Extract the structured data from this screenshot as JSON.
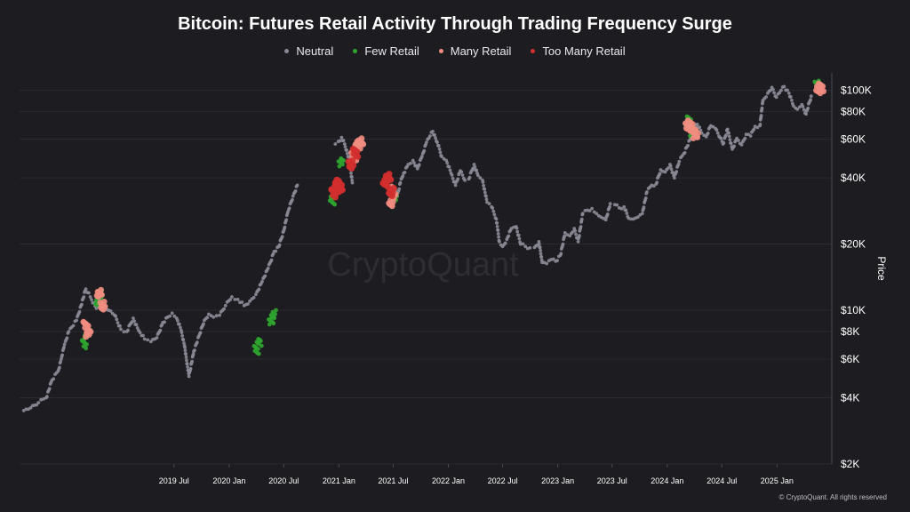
{
  "chart_data": {
    "type": "scatter",
    "title": "Bitcoin: Futures Retail Activity Through Trading Frequency Surge",
    "ylabel": "Price",
    "xlabel": "",
    "y_scale": "log",
    "ylim": [
      2000,
      120000
    ],
    "xlim": [
      "2018-02-01",
      "2025-06-15"
    ],
    "grid": true,
    "legend_position": "top-center",
    "watermark": "CryptoQuant",
    "y_ticks": [
      {
        "value": 2000,
        "label": "$2K"
      },
      {
        "value": 4000,
        "label": "$4K"
      },
      {
        "value": 6000,
        "label": "$6K"
      },
      {
        "value": 8000,
        "label": "$8K"
      },
      {
        "value": 10000,
        "label": "$10K"
      },
      {
        "value": 20000,
        "label": "$20K"
      },
      {
        "value": 40000,
        "label": "$40K"
      },
      {
        "value": 60000,
        "label": "$60K"
      },
      {
        "value": 80000,
        "label": "$80K"
      },
      {
        "value": 100000,
        "label": "$100K"
      }
    ],
    "x_ticks": [
      {
        "date": "2019-07-01",
        "label": "2019 Jul"
      },
      {
        "date": "2020-01-01",
        "label": "2020 Jan"
      },
      {
        "date": "2020-07-01",
        "label": "2020 Jul"
      },
      {
        "date": "2021-01-01",
        "label": "2021 Jan"
      },
      {
        "date": "2021-07-01",
        "label": "2021 Jul"
      },
      {
        "date": "2022-01-01",
        "label": "2022 Jan"
      },
      {
        "date": "2022-07-01",
        "label": "2022 Jul"
      },
      {
        "date": "2023-01-01",
        "label": "2023 Jan"
      },
      {
        "date": "2023-07-01",
        "label": "2023 Jul"
      },
      {
        "date": "2024-01-01",
        "label": "2024 Jan"
      },
      {
        "date": "2024-07-01",
        "label": "2024 Jul"
      },
      {
        "date": "2025-01-01",
        "label": "2025 Jan"
      }
    ],
    "series": [
      {
        "name": "Neutral",
        "color": "#8a8a96",
        "points": [
          [
            "2018-02-15",
            3500
          ],
          [
            "2018-03-10",
            3600
          ],
          [
            "2018-04-05",
            3800
          ],
          [
            "2018-05-01",
            4000
          ],
          [
            "2018-05-20",
            4800
          ],
          [
            "2018-06-10",
            5300
          ],
          [
            "2018-06-20",
            6000
          ],
          [
            "2018-07-01",
            7000
          ],
          [
            "2018-07-15",
            8000
          ],
          [
            "2018-08-10",
            9000
          ],
          [
            "2018-08-25",
            10500
          ],
          [
            "2018-09-10",
            12500
          ],
          [
            "2018-09-25",
            11500
          ],
          [
            "2018-10-15",
            10200
          ],
          [
            "2018-11-05",
            10800
          ],
          [
            "2018-11-25",
            10000
          ],
          [
            "2018-12-15",
            9500
          ],
          [
            "2019-01-05",
            8200
          ],
          [
            "2019-01-25",
            8000
          ],
          [
            "2019-02-15",
            9200
          ],
          [
            "2019-03-05",
            8100
          ],
          [
            "2019-03-25",
            7400
          ],
          [
            "2019-04-15",
            7200
          ],
          [
            "2019-05-05",
            7500
          ],
          [
            "2019-05-25",
            8800
          ],
          [
            "2019-06-10",
            9300
          ],
          [
            "2019-06-25",
            9700
          ],
          [
            "2019-07-10",
            9200
          ],
          [
            "2019-07-25",
            8100
          ],
          [
            "2019-08-05",
            6900
          ],
          [
            "2019-08-20",
            5000
          ],
          [
            "2019-09-05",
            6500
          ],
          [
            "2019-09-25",
            7800
          ],
          [
            "2019-10-10",
            9000
          ],
          [
            "2019-10-25",
            9600
          ],
          [
            "2019-11-10",
            9300
          ],
          [
            "2019-11-30",
            9500
          ],
          [
            "2019-12-20",
            10500
          ],
          [
            "2020-01-10",
            11500
          ],
          [
            "2020-01-30",
            11200
          ],
          [
            "2020-02-20",
            10500
          ],
          [
            "2020-03-10",
            11000
          ],
          [
            "2020-03-30",
            11800
          ],
          [
            "2020-04-20",
            13500
          ],
          [
            "2020-05-10",
            15500
          ],
          [
            "2020-05-30",
            18500
          ],
          [
            "2020-06-15",
            19500
          ],
          [
            "2020-07-01",
            23000
          ],
          [
            "2020-07-15",
            28000
          ],
          [
            "2020-08-01",
            33000
          ],
          [
            "2020-08-15",
            37000
          ],
          [
            "2020-12-20",
            57000
          ],
          [
            "2020-12-30",
            58500
          ],
          [
            "2021-01-10",
            61000
          ],
          [
            "2021-01-20",
            57000
          ],
          [
            "2021-02-05",
            48000
          ],
          [
            "2021-02-15",
            38000
          ],
          [
            "2021-07-15",
            33000
          ],
          [
            "2021-07-25",
            38000
          ],
          [
            "2021-08-05",
            42000
          ],
          [
            "2021-08-20",
            46000
          ],
          [
            "2021-09-05",
            48000
          ],
          [
            "2021-09-20",
            44000
          ],
          [
            "2021-10-05",
            50000
          ],
          [
            "2021-10-20",
            58000
          ],
          [
            "2021-11-01",
            62000
          ],
          [
            "2021-11-10",
            65000
          ],
          [
            "2021-11-25",
            58000
          ],
          [
            "2021-12-10",
            50000
          ],
          [
            "2021-12-25",
            48000
          ],
          [
            "2022-01-10",
            42000
          ],
          [
            "2022-01-25",
            37000
          ],
          [
            "2022-02-10",
            43000
          ],
          [
            "2022-02-25",
            39000
          ],
          [
            "2022-03-10",
            39500
          ],
          [
            "2022-03-28",
            46000
          ],
          [
            "2022-04-10",
            41000
          ],
          [
            "2022-04-25",
            39000
          ],
          [
            "2022-05-10",
            31000
          ],
          [
            "2022-05-25",
            29500
          ],
          [
            "2022-06-10",
            26000
          ],
          [
            "2022-06-20",
            20500
          ],
          [
            "2022-07-01",
            19500
          ],
          [
            "2022-07-15",
            21000
          ],
          [
            "2022-07-30",
            23500
          ],
          [
            "2022-08-15",
            24000
          ],
          [
            "2022-08-30",
            20000
          ],
          [
            "2022-09-15",
            19500
          ],
          [
            "2022-09-30",
            19200
          ],
          [
            "2022-10-15",
            19300
          ],
          [
            "2022-10-30",
            20500
          ],
          [
            "2022-11-10",
            16500
          ],
          [
            "2022-11-25",
            16300
          ],
          [
            "2022-12-10",
            17000
          ],
          [
            "2022-12-25",
            16700
          ],
          [
            "2023-01-10",
            17800
          ],
          [
            "2023-01-25",
            22500
          ],
          [
            "2023-02-10",
            21800
          ],
          [
            "2023-02-25",
            23500
          ],
          [
            "2023-03-10",
            20500
          ],
          [
            "2023-03-25",
            27500
          ],
          [
            "2023-04-10",
            28500
          ],
          [
            "2023-04-25",
            29000
          ],
          [
            "2023-05-10",
            27500
          ],
          [
            "2023-05-25",
            26500
          ],
          [
            "2023-06-10",
            25800
          ],
          [
            "2023-06-25",
            30500
          ],
          [
            "2023-07-10",
            30200
          ],
          [
            "2023-07-25",
            29200
          ],
          [
            "2023-08-10",
            29500
          ],
          [
            "2023-08-25",
            26200
          ],
          [
            "2023-09-10",
            26000
          ],
          [
            "2023-09-25",
            26500
          ],
          [
            "2023-10-10",
            27500
          ],
          [
            "2023-10-25",
            34500
          ],
          [
            "2023-11-10",
            37000
          ],
          [
            "2023-11-25",
            37500
          ],
          [
            "2023-12-10",
            43500
          ],
          [
            "2023-12-25",
            42500
          ],
          [
            "2024-01-10",
            46000
          ],
          [
            "2024-01-25",
            40000
          ],
          [
            "2024-02-10",
            47500
          ],
          [
            "2024-02-25",
            51500
          ],
          [
            "2024-04-10",
            70000
          ],
          [
            "2024-04-25",
            64000
          ],
          [
            "2024-05-10",
            61500
          ],
          [
            "2024-05-25",
            69000
          ],
          [
            "2024-06-10",
            67000
          ],
          [
            "2024-06-25",
            61000
          ],
          [
            "2024-07-05",
            57000
          ],
          [
            "2024-07-20",
            66500
          ],
          [
            "2024-08-05",
            54000
          ],
          [
            "2024-08-20",
            60500
          ],
          [
            "2024-09-05",
            56500
          ],
          [
            "2024-09-20",
            63000
          ],
          [
            "2024-10-05",
            62000
          ],
          [
            "2024-10-20",
            68500
          ],
          [
            "2024-11-05",
            69000
          ],
          [
            "2024-11-15",
            90000
          ],
          [
            "2024-12-01",
            97000
          ],
          [
            "2024-12-15",
            103000
          ],
          [
            "2024-12-30",
            93000
          ],
          [
            "2025-01-15",
            100000
          ],
          [
            "2025-01-25",
            104000
          ],
          [
            "2025-02-10",
            97000
          ],
          [
            "2025-02-25",
            85000
          ],
          [
            "2025-03-10",
            82000
          ],
          [
            "2025-03-25",
            86000
          ],
          [
            "2025-04-08",
            78000
          ],
          [
            "2025-04-25",
            94000
          ]
        ]
      },
      {
        "name": "Few Retail",
        "color": "#2fa52f",
        "points": [
          [
            "2018-09-05",
            7000
          ],
          [
            "2018-09-12",
            7700
          ],
          [
            "2018-10-20",
            11000
          ],
          [
            "2018-10-28",
            11800
          ],
          [
            "2020-04-01",
            6600
          ],
          [
            "2020-04-10",
            7100
          ],
          [
            "2020-05-20",
            8900
          ],
          [
            "2020-05-28",
            9600
          ],
          [
            "2020-12-10",
            31500
          ],
          [
            "2021-01-08",
            47000
          ],
          [
            "2021-06-28",
            34000
          ],
          [
            "2021-07-05",
            33000
          ],
          [
            "2024-03-12",
            73000
          ],
          [
            "2024-03-25",
            64000
          ],
          [
            "2025-05-15",
            106000
          ]
        ]
      },
      {
        "name": "Many Retail",
        "color": "#f08c80",
        "points": [
          [
            "2018-09-10",
            8500
          ],
          [
            "2018-09-18",
            7900
          ],
          [
            "2018-10-25",
            12000
          ],
          [
            "2018-11-05",
            10500
          ],
          [
            "2021-02-20",
            50000
          ],
          [
            "2021-03-05",
            56000
          ],
          [
            "2021-03-15",
            58000
          ],
          [
            "2021-06-25",
            31000
          ],
          [
            "2021-07-01",
            35000
          ],
          [
            "2024-03-10",
            70000
          ],
          [
            "2024-03-18",
            68000
          ],
          [
            "2024-03-28",
            66000
          ],
          [
            "2024-04-05",
            63000
          ],
          [
            "2025-05-20",
            103000
          ],
          [
            "2025-05-28",
            100000
          ]
        ]
      },
      {
        "name": "Too Many Retail",
        "color": "#d32f2f",
        "points": [
          [
            "2020-12-15",
            34000
          ],
          [
            "2020-12-25",
            38000
          ],
          [
            "2021-01-05",
            36000
          ],
          [
            "2021-02-10",
            46000
          ],
          [
            "2021-02-25",
            52000
          ],
          [
            "2021-06-05",
            37500
          ],
          [
            "2021-06-15",
            40000
          ],
          [
            "2021-06-25",
            34500
          ]
        ]
      }
    ]
  },
  "footer": "© CryptoQuant. All rights reserved"
}
